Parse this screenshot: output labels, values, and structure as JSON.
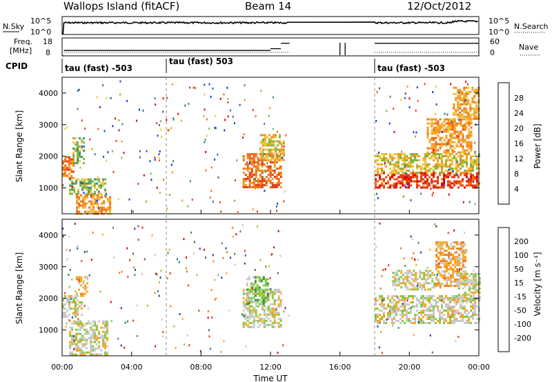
{
  "header": {
    "station": "Wallops Island (fitACF)",
    "beam": "Beam 14",
    "date": "12/Oct/2012"
  },
  "time_axis": {
    "ticks": [
      "00:00",
      "04:00",
      "08:00",
      "12:00",
      "16:00",
      "20:00",
      "00:00"
    ],
    "label": "Time UT"
  },
  "noise_panel": {
    "left_label": "N.Sky",
    "right_label": "N.Search",
    "left_ticks": [
      "10^5",
      "10^0"
    ],
    "right_ticks": [
      "10^5",
      "10^0"
    ]
  },
  "freq_panel": {
    "left_label_1": "Freq.",
    "left_label_2": "[MHz]",
    "right_label": "Nave",
    "left_ticks": [
      "18",
      "8"
    ],
    "right_ticks": [
      "60",
      "0"
    ]
  },
  "cpid": {
    "label": "CPID",
    "segments": [
      "tau (fast) -503",
      "tau (fast) 503",
      "tau (fast) -503"
    ]
  },
  "power_panel": {
    "ylabel": "Slant Range [km]",
    "yticks": [
      "4000",
      "3000",
      "2000",
      "1000"
    ],
    "colorbar_label": "Power [dB]",
    "colorbar_ticks": [
      "28",
      "24",
      "20",
      "16",
      "12",
      "8",
      "4"
    ],
    "colors": [
      "#0033ff",
      "#1f4fa6",
      "#2f6f84",
      "#3f8e6a",
      "#7fb440",
      "#f2c23a",
      "#f59a1c",
      "#f26a16",
      "#e23a10",
      "#e00000"
    ]
  },
  "velocity_panel": {
    "ylabel": "Slant Range [km]",
    "yticks": [
      "4000",
      "3000",
      "2000",
      "1000"
    ],
    "colorbar_label": "Velocity [m s⁻¹]",
    "colorbar_ticks": [
      "200",
      "100",
      "50",
      "15",
      "-15",
      "-50",
      "-100",
      "-200"
    ],
    "colors": [
      "#1a3fb0",
      "#2e6b8a",
      "#3f8e4e",
      "#7ecb3a",
      "#c8c8c8",
      "#f5a623",
      "#f27a14",
      "#e83a10",
      "#e00000"
    ]
  },
  "chart_data": {
    "type": "heatmap",
    "x_domain_hours": [
      0,
      24
    ],
    "y_domain_km": [
      180,
      4500
    ],
    "gap_hours": [
      13.1,
      18.0
    ],
    "cpid_changes_hours": [
      6.0,
      18.0
    ],
    "frequency_steps": [
      {
        "from_h": 0.0,
        "to_h": 0.1,
        "mhz": 8
      },
      {
        "from_h": 0.1,
        "to_h": 12.0,
        "mhz": 11
      },
      {
        "from_h": 12.0,
        "to_h": 12.6,
        "mhz": 12
      },
      {
        "from_h": 12.6,
        "to_h": 13.1,
        "mhz": 15
      },
      {
        "from_h": 18.0,
        "to_h": 24.0,
        "mhz": 15
      }
    ],
    "power_regions": [
      {
        "t0": 0.0,
        "t1": 0.6,
        "r0": 1300,
        "r1": 2000,
        "level": 7
      },
      {
        "t0": 0.6,
        "t1": 1.3,
        "r0": 1800,
        "r1": 2600,
        "level": 4
      },
      {
        "t0": 0.4,
        "t1": 2.5,
        "r0": 800,
        "r1": 1300,
        "level": 4
      },
      {
        "t0": 0.8,
        "t1": 2.8,
        "r0": 200,
        "r1": 800,
        "level": 6
      },
      {
        "t0": 10.4,
        "t1": 12.6,
        "r0": 1000,
        "r1": 2100,
        "level": 7
      },
      {
        "t0": 11.4,
        "t1": 12.8,
        "r0": 1900,
        "r1": 2700,
        "level": 5
      },
      {
        "t0": 18.0,
        "t1": 24.0,
        "r0": 1000,
        "r1": 1500,
        "level": 8
      },
      {
        "t0": 18.0,
        "t1": 24.0,
        "r0": 1500,
        "r1": 2100,
        "level": 5
      },
      {
        "t0": 21.0,
        "t1": 23.6,
        "r0": 2100,
        "r1": 3200,
        "level": 6
      },
      {
        "t0": 22.5,
        "t1": 24.0,
        "r0": 3200,
        "r1": 4200,
        "level": 6
      }
    ],
    "velocity_regions": [
      {
        "t0": 0.0,
        "t1": 1.1,
        "r0": 1400,
        "r1": 2100,
        "cls": 4
      },
      {
        "t0": 0.4,
        "t1": 2.6,
        "r0": 200,
        "r1": 1300,
        "cls": 4
      },
      {
        "t0": 0.8,
        "t1": 1.4,
        "r0": 2100,
        "r1": 2700,
        "cls": 5
      },
      {
        "t0": 10.4,
        "t1": 12.6,
        "r0": 1100,
        "r1": 2300,
        "cls": 4
      },
      {
        "t0": 10.6,
        "t1": 11.8,
        "r0": 1800,
        "r1": 2700,
        "cls": 3
      },
      {
        "t0": 18.0,
        "t1": 24.0,
        "r0": 1200,
        "r1": 2100,
        "cls": 4
      },
      {
        "t0": 19.0,
        "t1": 21.5,
        "r0": 2300,
        "r1": 2900,
        "cls": 4
      },
      {
        "t0": 21.5,
        "t1": 23.2,
        "r0": 2400,
        "r1": 3800,
        "cls": 5
      },
      {
        "t0": 22.8,
        "t1": 24.0,
        "r0": 1900,
        "r1": 2800,
        "cls": 4
      }
    ]
  }
}
